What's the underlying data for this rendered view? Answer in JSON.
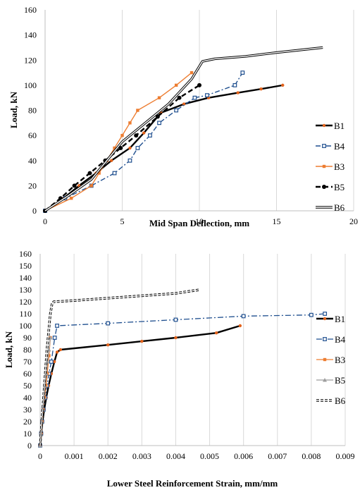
{
  "chart_data": [
    {
      "type": "line",
      "xlabel": "Mid Span Deflection, mm",
      "ylabel": "Load, kN",
      "xlim": [
        0,
        20
      ],
      "ylim": [
        0,
        160
      ],
      "x_ticks": [
        "0",
        "5",
        "10",
        "15",
        "20"
      ],
      "y_ticks": [
        "0",
        "20",
        "40",
        "60",
        "80",
        "100",
        "120",
        "140",
        "160"
      ],
      "grid": "vertical",
      "legend_position": "right",
      "series": [
        {
          "name": "B1",
          "color": "#000000",
          "width": 2.4,
          "dash": "",
          "marker": "dot-orange",
          "x": [
            0,
            1.2,
            2.2,
            3.3,
            4.3,
            5.5,
            6.4,
            7.5,
            9,
            10.6,
            12.5,
            14,
            15.4
          ],
          "y": [
            0,
            10,
            20,
            30,
            40,
            50,
            62,
            78,
            85,
            90,
            94,
            97,
            100
          ]
        },
        {
          "name": "B4",
          "color": "#1f4f8f",
          "width": 1.4,
          "dash": "7,3,2,3",
          "marker": "square-blue",
          "x": [
            0,
            1.3,
            3,
            4.5,
            5.5,
            6,
            6.8,
            7.4,
            8.5,
            9.7,
            10.5,
            12.3,
            12.8
          ],
          "y": [
            0,
            10,
            20,
            30,
            40,
            50,
            60,
            70,
            80,
            90,
            92,
            100,
            110
          ]
        },
        {
          "name": "B3",
          "color": "#ed7d31",
          "width": 1.4,
          "dash": "",
          "marker": "square-orange",
          "x": [
            0,
            1.7,
            3,
            3.5,
            4,
            4.5,
            5,
            5.5,
            6,
            7.4,
            8.5,
            9.5
          ],
          "y": [
            0,
            10,
            20,
            30,
            40,
            50,
            60,
            70,
            80,
            90,
            100,
            110
          ]
        },
        {
          "name": "B5",
          "color": "#000000",
          "width": 2.4,
          "dash": "7,4",
          "marker": "dot-black",
          "x": [
            0,
            1,
            1.9,
            2.9,
            3.9,
            4.9,
            5.9,
            7.3,
            8.7,
            10
          ],
          "y": [
            0,
            10,
            20,
            30,
            40,
            50,
            60,
            75,
            90,
            100
          ]
        },
        {
          "name": "B6",
          "color": "#000000",
          "width": 1.2,
          "dash": "",
          "marker": "none",
          "style": "double",
          "x": [
            0,
            1.5,
            3,
            4,
            5,
            6.5,
            8,
            9.5,
            10.2,
            11,
            13,
            15,
            18
          ],
          "y": [
            0,
            12,
            25,
            40,
            55,
            70,
            85,
            105,
            119,
            121,
            123,
            126,
            130
          ]
        }
      ]
    },
    {
      "type": "line",
      "xlabel": "Lower Steel Reinforcement Strain, mm/mm",
      "ylabel": "Load, kN",
      "xlim": [
        0,
        0.009
      ],
      "ylim": [
        0,
        160
      ],
      "x_ticks": [
        "0",
        "0.001",
        "0.002",
        "0.003",
        "0.004",
        "0.005",
        "0.006",
        "0.007",
        "0.008",
        "0.009"
      ],
      "y_ticks": [
        "0",
        "10",
        "20",
        "30",
        "40",
        "50",
        "60",
        "70",
        "80",
        "90",
        "100",
        "110",
        "120",
        "130",
        "140",
        "150",
        "160"
      ],
      "grid": "vertical",
      "legend_position": "right",
      "series": [
        {
          "name": "B1",
          "color": "#000000",
          "width": 2.4,
          "dash": "",
          "marker": "dot-orange",
          "x": [
            0,
            3e-05,
            7e-05,
            0.00012,
            0.00018,
            0.00025,
            0.00033,
            0.00042,
            0.0005,
            0.0006,
            0.002,
            0.003,
            0.004,
            0.0052,
            0.0059
          ],
          "y": [
            0,
            10,
            20,
            30,
            40,
            50,
            60,
            70,
            78,
            80,
            84,
            87,
            90,
            94,
            100
          ]
        },
        {
          "name": "B4",
          "color": "#1f4f8f",
          "width": 1.3,
          "dash": "8,3,2,3",
          "marker": "square-blue",
          "x": [
            0,
            3e-05,
            6e-05,
            0.0001,
            0.00015,
            0.0002,
            0.00026,
            0.00033,
            0.00043,
            0.0005,
            0.002,
            0.004,
            0.006,
            0.008,
            0.0084
          ],
          "y": [
            0,
            10,
            20,
            30,
            40,
            50,
            60,
            70,
            90,
            100,
            102,
            105,
            108,
            109,
            110
          ]
        },
        {
          "name": "B3",
          "color": "#ed7d31",
          "width": 1.3,
          "dash": "",
          "marker": "square-orange",
          "x": [
            0,
            3e-05,
            6e-05,
            9e-05,
            0.00013,
            0.00017,
            0.00021,
            0.00026,
            0.0003
          ],
          "y": [
            0,
            10,
            20,
            30,
            40,
            50,
            60,
            75,
            90
          ]
        },
        {
          "name": "B5",
          "color": "#9e9e9e",
          "width": 1.3,
          "dash": "",
          "marker": "tri-gray",
          "x": [
            0,
            2e-05,
            5e-05,
            8e-05,
            0.00011,
            0.00014,
            0.00018,
            0.00022,
            0.00026,
            0.0003
          ],
          "y": [
            0,
            10,
            20,
            30,
            40,
            50,
            60,
            70,
            80,
            90
          ]
        },
        {
          "name": "B6",
          "color": "#000000",
          "width": 1.2,
          "dash": "4,2",
          "marker": "none",
          "style": "double",
          "x": [
            0,
            5e-05,
            0.0001,
            0.00015,
            0.0002,
            0.00025,
            0.0003,
            0.00035,
            0.0004,
            0.001,
            0.002,
            0.003,
            0.004,
            0.0047
          ],
          "y": [
            0,
            20,
            40,
            60,
            80,
            95,
            110,
            118,
            120,
            121,
            123,
            125,
            127,
            130
          ]
        }
      ]
    }
  ]
}
